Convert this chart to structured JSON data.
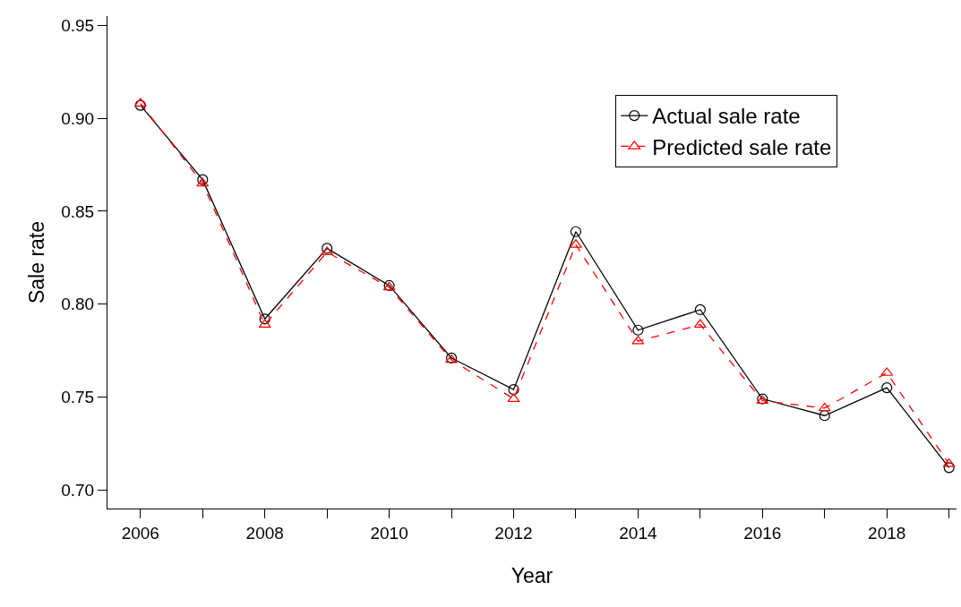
{
  "chart_data": {
    "type": "line",
    "xlabel": "Year",
    "ylabel": "Sale rate",
    "x": [
      2006,
      2007,
      2008,
      2009,
      2010,
      2011,
      2012,
      2013,
      2014,
      2015,
      2016,
      2017,
      2018,
      2019
    ],
    "series": [
      {
        "name": "Actual sale rate",
        "color": "#000000",
        "marker": "circle",
        "line_style": "solid",
        "values": [
          0.907,
          0.867,
          0.792,
          0.83,
          0.81,
          0.771,
          0.754,
          0.839,
          0.786,
          0.797,
          0.749,
          0.74,
          0.755,
          0.712
        ]
      },
      {
        "name": "Predicted sale rate",
        "color": "#ff0000",
        "marker": "triangle",
        "line_style": "dashed",
        "values": [
          0.908,
          0.865,
          0.789,
          0.828,
          0.809,
          0.77,
          0.749,
          0.832,
          0.78,
          0.789,
          0.748,
          0.744,
          0.763,
          0.714
        ]
      }
    ],
    "xlim": [
      2005.47,
      2019.12
    ],
    "ylim": [
      0.69,
      0.955
    ],
    "xticks": [
      {
        "value": 2006,
        "label": "2006"
      },
      {
        "value": 2007,
        "label": null
      },
      {
        "value": 2008,
        "label": "2008"
      },
      {
        "value": 2009,
        "label": null
      },
      {
        "value": 2010,
        "label": "2010"
      },
      {
        "value": 2011,
        "label": null
      },
      {
        "value": 2012,
        "label": "2012"
      },
      {
        "value": 2013,
        "label": null
      },
      {
        "value": 2014,
        "label": "2014"
      },
      {
        "value": 2015,
        "label": null
      },
      {
        "value": 2016,
        "label": "2016"
      },
      {
        "value": 2017,
        "label": null
      },
      {
        "value": 2018,
        "label": "2018"
      },
      {
        "value": 2019,
        "label": null
      }
    ],
    "yticks": [
      {
        "value": 0.7,
        "label": "0.70"
      },
      {
        "value": 0.75,
        "label": "0.75"
      },
      {
        "value": 0.8,
        "label": "0.80"
      },
      {
        "value": 0.85,
        "label": "0.85"
      },
      {
        "value": 0.9,
        "label": "0.90"
      },
      {
        "value": 0.95,
        "label": "0.95"
      }
    ],
    "legend": "top right"
  }
}
